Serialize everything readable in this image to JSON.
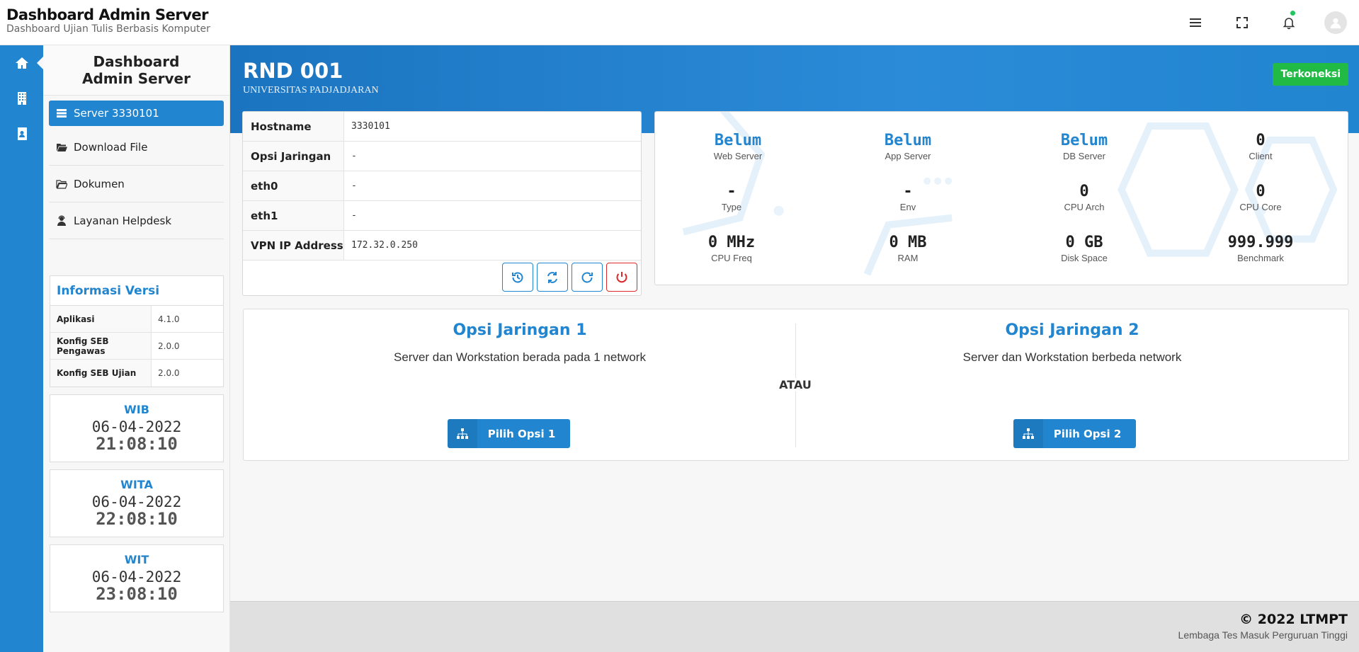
{
  "header": {
    "title": "Dashboard Admin Server",
    "subtitle": "Dashboard Ujian Tulis Berbasis Komputer",
    "icons": [
      "menu-icon",
      "fullscreen-icon",
      "bell-icon",
      "user-avatar-icon"
    ]
  },
  "rail": {
    "icons": [
      "home-icon",
      "building-icon",
      "contact-book-icon"
    ]
  },
  "sidebar": {
    "title": "Dashboard Admin Server",
    "items": [
      {
        "label": "Server 3330101",
        "icon": "server-icon",
        "active": true
      },
      {
        "label": "Download File",
        "icon": "folder-open-icon"
      },
      {
        "label": "Dokumen",
        "icon": "folder-open-icon"
      },
      {
        "label": "Layanan Helpdesk",
        "icon": "user-headset-icon"
      }
    ]
  },
  "version": {
    "title": "Informasi Versi",
    "rows": [
      {
        "key": "Aplikasi",
        "value": "4.1.0"
      },
      {
        "key": "Konfig SEB Pengawas",
        "value": "2.0.0"
      },
      {
        "key": "Konfig SEB Ujian",
        "value": "2.0.0"
      }
    ]
  },
  "clocks": [
    {
      "zone": "WIB",
      "date": "06-04-2022",
      "time": "21:08:10"
    },
    {
      "zone": "WITA",
      "date": "06-04-2022",
      "time": "22:08:10"
    },
    {
      "zone": "WIT",
      "date": "06-04-2022",
      "time": "23:08:10"
    }
  ],
  "banner": {
    "title": "RND 001",
    "subtitle": "UNIVERSITAS PADJADJARAN",
    "status": "Terkoneksi",
    "status_color": "#21ba45"
  },
  "host": {
    "rows": [
      {
        "key": "Hostname",
        "value": "3330101"
      },
      {
        "key": "Opsi Jaringan",
        "value": "-"
      },
      {
        "key": "eth0",
        "value": "-"
      },
      {
        "key": "eth1",
        "value": "-"
      },
      {
        "key": "VPN IP Address",
        "value": "172.32.0.250"
      }
    ],
    "actions": [
      "history-icon",
      "sync-icon",
      "redo-icon",
      "power-icon"
    ]
  },
  "stats": [
    {
      "value": "Belum",
      "label": "Web Server",
      "highlight": true
    },
    {
      "value": "Belum",
      "label": "App Server",
      "highlight": true
    },
    {
      "value": "Belum",
      "label": "DB Server",
      "highlight": true
    },
    {
      "value": "0",
      "label": "Client"
    },
    {
      "value": "-",
      "label": "Type"
    },
    {
      "value": "-",
      "label": "Env"
    },
    {
      "value": "0",
      "label": "CPU Arch"
    },
    {
      "value": "0",
      "label": "CPU Core"
    },
    {
      "value": "0 MHz",
      "label": "CPU Freq"
    },
    {
      "value": "0 MB",
      "label": "RAM"
    },
    {
      "value": "0 GB",
      "label": "Disk Space"
    },
    {
      "value": "999.999",
      "label": "Benchmark"
    }
  ],
  "options": {
    "separator": "ATAU",
    "items": [
      {
        "title": "Opsi Jaringan 1",
        "desc": "Server dan Workstation berada pada 1 network",
        "button": "Pilih Opsi 1"
      },
      {
        "title": "Opsi Jaringan 2",
        "desc": "Server dan Workstation berbeda network",
        "button": "Pilih Opsi 2"
      }
    ]
  },
  "footer": {
    "main": "© 2022 LTMPT",
    "sub": "Lembaga Tes Masuk Perguruan Tinggi"
  },
  "colors": {
    "primary": "#2185d0",
    "success": "#21ba45",
    "danger": "#db2828"
  }
}
